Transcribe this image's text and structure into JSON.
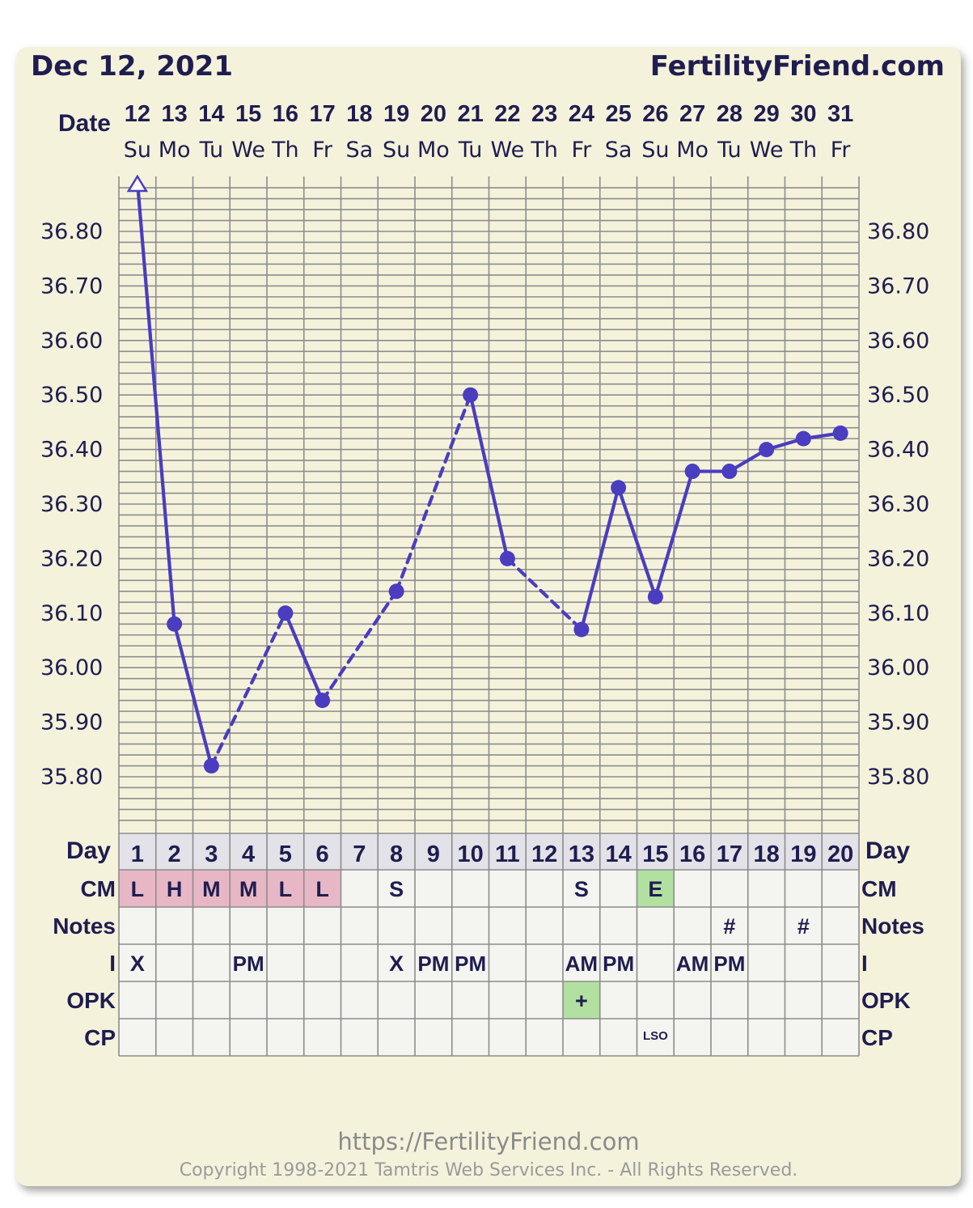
{
  "header": {
    "chart_date": "Dec 12, 2021",
    "site": "FertilityFriend.com",
    "date_label": "Date",
    "day_label": "Day"
  },
  "footer": {
    "url": "https://FertilityFriend.com",
    "copyright": "Copyright 1998-2021 Tamtris Web Services Inc. - All Rights Reserved."
  },
  "colors": {
    "background": "#f5f2dc",
    "line": "#4a3dbf",
    "text": "#1f1d4f",
    "cm_fertile": "#e8b7c6",
    "egg_white": "#b2e0a1",
    "opk_positive": "#b2e0a1",
    "cycle_day_row": "#e2e2e8"
  },
  "chart_data": {
    "type": "line",
    "ylim": [
      35.72,
      36.9
    ],
    "y_ticks": [
      "36.80",
      "36.70",
      "36.60",
      "36.50",
      "36.40",
      "36.30",
      "36.20",
      "36.10",
      "36.00",
      "35.90",
      "35.80"
    ],
    "dates": [
      "12",
      "13",
      "14",
      "15",
      "16",
      "17",
      "18",
      "19",
      "20",
      "21",
      "22",
      "23",
      "24",
      "25",
      "26",
      "27",
      "28",
      "29",
      "30",
      "31"
    ],
    "weekdays": [
      "Su",
      "Mo",
      "Tu",
      "We",
      "Th",
      "Fr",
      "Sa",
      "Su",
      "Mo",
      "Tu",
      "We",
      "Th",
      "Fr",
      "Sa",
      "Su",
      "Mo",
      "Tu",
      "We",
      "Th",
      "Fr"
    ],
    "cycle_days": [
      "1",
      "2",
      "3",
      "4",
      "5",
      "6",
      "7",
      "8",
      "9",
      "10",
      "11",
      "12",
      "13",
      "14",
      "15",
      "16",
      "17",
      "18",
      "19",
      "20"
    ],
    "temperatures": [
      36.89,
      36.08,
      35.82,
      null,
      36.1,
      35.94,
      null,
      36.14,
      null,
      36.5,
      36.2,
      null,
      36.07,
      36.33,
      36.13,
      36.36,
      36.36,
      36.4,
      36.42,
      36.43
    ],
    "off_scale_high_day": 1,
    "line_styles": [
      "solid",
      "solid",
      "dashed",
      "dashed",
      "solid",
      "dashed",
      "dashed",
      "dashed",
      "dashed",
      "solid",
      "dashed",
      "dashed",
      "solid",
      "solid",
      "solid",
      "solid",
      "solid",
      "solid",
      "solid"
    ],
    "rows": [
      {
        "label": "CM",
        "cells": [
          "L",
          "H",
          "M",
          "M",
          "L",
          "L",
          "",
          "S",
          "",
          "",
          "",
          "",
          "S",
          "",
          "E",
          "",
          "",
          "",
          "",
          ""
        ]
      },
      {
        "label": "Notes",
        "cells": [
          "",
          "",
          "",
          "",
          "",
          "",
          "",
          "",
          "",
          "",
          "",
          "",
          "",
          "",
          "",
          "",
          "#",
          "",
          "#",
          ""
        ]
      },
      {
        "label": "I",
        "cells": [
          "X",
          "",
          "",
          "PM",
          "",
          "",
          "",
          "X",
          "PM",
          "PM",
          "",
          "",
          "AM",
          "PM",
          "",
          "AM",
          "PM",
          "",
          "",
          ""
        ]
      },
      {
        "label": "OPK",
        "cells": [
          "",
          "",
          "",
          "",
          "",
          "",
          "",
          "",
          "",
          "",
          "",
          "",
          "+",
          "",
          "",
          "",
          "",
          "",
          "",
          ""
        ]
      },
      {
        "label": "CP",
        "cells": [
          "",
          "",
          "",
          "",
          "",
          "",
          "",
          "",
          "",
          "",
          "",
          "",
          "",
          "",
          "LSO",
          "",
          "",
          "",
          "",
          ""
        ]
      }
    ]
  }
}
